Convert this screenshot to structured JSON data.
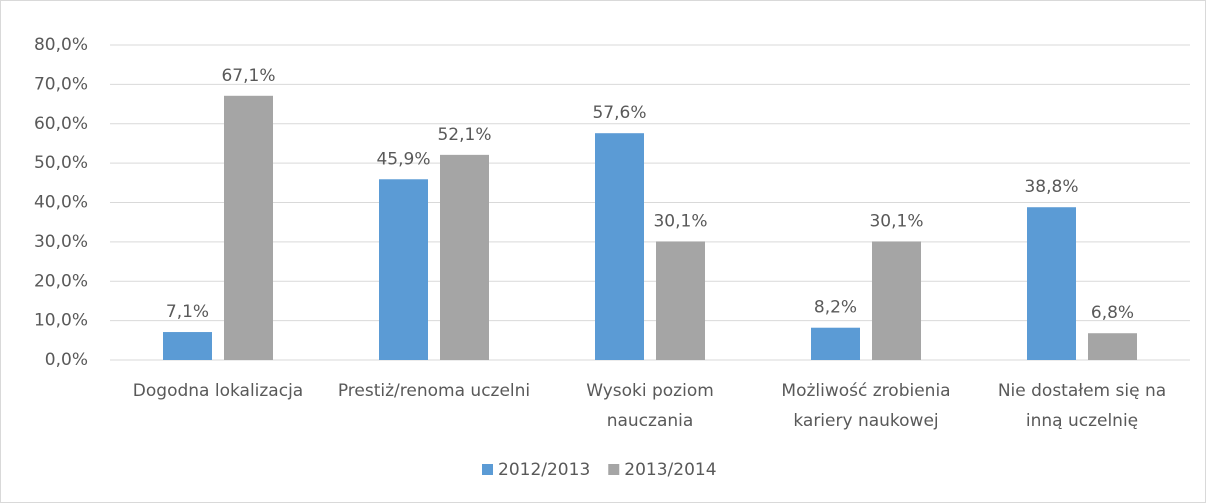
{
  "chart_data": {
    "type": "bar",
    "categories": [
      "Dogodna lokalizacja",
      "Prestiż/renoma uczelni",
      "Wysoki poziom nauczania",
      "Możliwość zrobienia kariery naukowej",
      "Nie dostałem się na inną uczelnię"
    ],
    "series": [
      {
        "name": "2012/2013",
        "color": "#5b9bd5",
        "values": [
          7.1,
          45.9,
          57.6,
          8.2,
          38.8
        ],
        "value_labels": [
          "7,1%",
          "45,9%",
          "57,6%",
          "8,2%",
          "38,8%"
        ]
      },
      {
        "name": "2013/2014",
        "color": "#a5a5a5",
        "values": [
          67.1,
          52.1,
          30.1,
          30.1,
          6.8
        ],
        "value_labels": [
          "67,1%",
          "52,1%",
          "30,1%",
          "30,1%",
          "6,8%"
        ]
      }
    ],
    "ylim": [
      0,
      80
    ],
    "yticks": [
      {
        "value": 0,
        "label": "0,0%"
      },
      {
        "value": 10,
        "label": "10,0%"
      },
      {
        "value": 20,
        "label": "20,0%"
      },
      {
        "value": 30,
        "label": "30,0%"
      },
      {
        "value": 40,
        "label": "40,0%"
      },
      {
        "value": 50,
        "label": "50,0%"
      },
      {
        "value": 60,
        "label": "60,0%"
      },
      {
        "value": 70,
        "label": "70,0%"
      },
      {
        "value": 80,
        "label": "80,0%"
      }
    ],
    "grid": true,
    "legend": "bottom"
  }
}
